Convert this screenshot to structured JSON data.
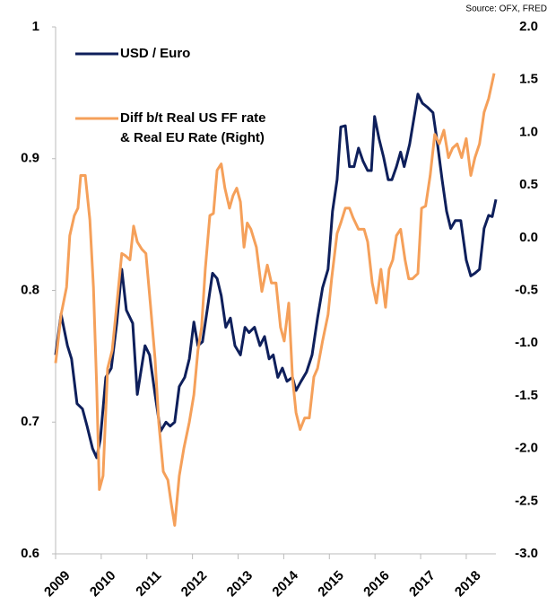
{
  "chart_data": {
    "type": "line",
    "source": "Source: OFX, FRED",
    "xlim": [
      2009,
      2018.65
    ],
    "xticks": [
      2009,
      2010,
      2011,
      2012,
      2013,
      2014,
      2015,
      2016,
      2017,
      2018
    ],
    "ylim": [
      0.6,
      1
    ],
    "yticks": [
      0.6,
      0.7,
      0.8,
      0.9,
      1
    ],
    "y2lim": [
      -3,
      2
    ],
    "y2ticks": [
      {
        "value": -3,
        "label": "-3.0"
      },
      -2.5,
      {
        "value": -2,
        "label": "-2.0"
      },
      -1.5,
      {
        "value": -1,
        "label": "-1.0"
      },
      -0.5,
      {
        "value": 0,
        "label": "0.0"
      },
      0.5,
      {
        "value": 1,
        "label": "1.0"
      },
      1.5,
      {
        "value": 2,
        "label": "2.0"
      }
    ],
    "grid": false,
    "series": [
      {
        "name": "USD / Euro",
        "color": "#0e1f5b",
        "axis": "y",
        "x": [
          2009.0,
          2009.12,
          2009.26,
          2009.35,
          2009.47,
          2009.59,
          2009.69,
          2009.81,
          2009.9,
          2009.98,
          2010.1,
          2010.22,
          2010.34,
          2010.45,
          2010.55,
          2010.69,
          2010.79,
          2010.85,
          2010.96,
          2011.06,
          2011.18,
          2011.3,
          2011.42,
          2011.51,
          2011.61,
          2011.71,
          2011.83,
          2011.93,
          2012.03,
          2012.12,
          2012.22,
          2012.34,
          2012.44,
          2012.54,
          2012.63,
          2012.73,
          2012.83,
          2012.93,
          2013.05,
          2013.15,
          2013.24,
          2013.36,
          2013.48,
          2013.58,
          2013.68,
          2013.77,
          2013.87,
          2013.97,
          2014.07,
          2014.19,
          2014.27,
          2014.38,
          2014.5,
          2014.62,
          2014.74,
          2014.85,
          2014.97,
          2015.07,
          2015.17,
          2015.25,
          2015.35,
          2015.44,
          2015.54,
          2015.64,
          2015.74,
          2015.84,
          2015.92,
          2015.99,
          2016.09,
          2016.19,
          2016.29,
          2016.37,
          2016.47,
          2016.56,
          2016.64,
          2016.76,
          2016.86,
          2016.94,
          2017.04,
          2017.15,
          2017.27,
          2017.37,
          2017.47,
          2017.57,
          2017.66,
          2017.76,
          2017.88,
          2018.0,
          2018.1,
          2018.19,
          2018.29,
          2018.39,
          2018.49,
          2018.57,
          2018.65
        ],
        "values": [
          0.751,
          0.782,
          0.758,
          0.748,
          0.714,
          0.71,
          0.697,
          0.68,
          0.673,
          0.687,
          0.734,
          0.741,
          0.775,
          0.816,
          0.785,
          0.775,
          0.721,
          0.734,
          0.758,
          0.751,
          0.721,
          0.693,
          0.7,
          0.697,
          0.7,
          0.727,
          0.734,
          0.748,
          0.776,
          0.758,
          0.761,
          0.789,
          0.813,
          0.809,
          0.796,
          0.772,
          0.779,
          0.758,
          0.751,
          0.772,
          0.768,
          0.772,
          0.758,
          0.765,
          0.748,
          0.751,
          0.734,
          0.741,
          0.731,
          0.734,
          0.724,
          0.731,
          0.738,
          0.751,
          0.779,
          0.802,
          0.816,
          0.86,
          0.884,
          0.924,
          0.925,
          0.894,
          0.894,
          0.908,
          0.898,
          0.891,
          0.891,
          0.932,
          0.915,
          0.901,
          0.884,
          0.884,
          0.894,
          0.905,
          0.894,
          0.911,
          0.932,
          0.949,
          0.942,
          0.939,
          0.935,
          0.911,
          0.884,
          0.86,
          0.847,
          0.853,
          0.853,
          0.823,
          0.811,
          0.813,
          0.816,
          0.847,
          0.857,
          0.856,
          0.869
        ]
      },
      {
        "name": [
          "Diff b/t Real US FF rate",
          "& Real EU Rate (Right)"
        ],
        "color": "#f5a05a",
        "axis": "y2",
        "x": [
          2009.0,
          2009.12,
          2009.24,
          2009.31,
          2009.41,
          2009.49,
          2009.55,
          2009.65,
          2009.75,
          2009.83,
          2009.9,
          2009.96,
          2010.04,
          2010.14,
          2010.24,
          2010.34,
          2010.45,
          2010.53,
          2010.63,
          2010.71,
          2010.79,
          2010.89,
          2010.98,
          2011.08,
          2011.18,
          2011.26,
          2011.36,
          2011.46,
          2011.53,
          2011.61,
          2011.71,
          2011.81,
          2011.93,
          2012.03,
          2012.12,
          2012.2,
          2012.28,
          2012.38,
          2012.46,
          2012.54,
          2012.63,
          2012.71,
          2012.81,
          2012.89,
          2012.97,
          2013.05,
          2013.13,
          2013.2,
          2013.28,
          2013.4,
          2013.52,
          2013.64,
          2013.73,
          2013.83,
          2013.93,
          2014.01,
          2014.11,
          2014.19,
          2014.27,
          2014.36,
          2014.46,
          2014.56,
          2014.66,
          2014.74,
          2014.85,
          2014.97,
          2015.05,
          2015.17,
          2015.25,
          2015.35,
          2015.44,
          2015.52,
          2015.64,
          2015.76,
          2015.84,
          2015.94,
          2016.03,
          2016.13,
          2016.23,
          2016.31,
          2016.39,
          2016.47,
          2016.56,
          2016.66,
          2016.74,
          2016.82,
          2016.94,
          2017.02,
          2017.11,
          2017.21,
          2017.31,
          2017.41,
          2017.51,
          2017.61,
          2017.7,
          2017.8,
          2017.9,
          2018.0,
          2018.1,
          2018.19,
          2018.29,
          2018.39,
          2018.49,
          2018.61
        ],
        "values": [
          -1.19,
          -0.73,
          -0.47,
          0.02,
          0.21,
          0.28,
          0.59,
          0.59,
          0.17,
          -0.47,
          -1.41,
          -2.39,
          -2.26,
          -1.24,
          -1.07,
          -0.64,
          -0.15,
          -0.17,
          -0.21,
          0.11,
          -0.04,
          -0.11,
          -0.15,
          -0.64,
          -1.15,
          -1.75,
          -2.22,
          -2.3,
          -2.51,
          -2.73,
          -2.26,
          -2.0,
          -1.75,
          -1.49,
          -1.07,
          -0.85,
          -0.3,
          0.21,
          0.23,
          0.64,
          0.7,
          0.47,
          0.28,
          0.4,
          0.47,
          0.34,
          -0.09,
          0.14,
          0.08,
          -0.09,
          -0.51,
          -0.26,
          -0.43,
          -0.43,
          -0.85,
          -0.98,
          -0.62,
          -1.32,
          -1.66,
          -1.82,
          -1.71,
          -1.71,
          -1.32,
          -1.24,
          -0.98,
          -0.73,
          -0.39,
          0.04,
          0.14,
          0.28,
          0.28,
          0.19,
          0.08,
          0.08,
          -0.04,
          -0.43,
          -0.62,
          -0.3,
          -0.66,
          -0.3,
          -0.21,
          0.02,
          0.08,
          -0.21,
          -0.39,
          -0.39,
          -0.34,
          0.28,
          0.3,
          0.59,
          0.98,
          0.89,
          1.02,
          0.76,
          0.85,
          0.89,
          0.76,
          0.94,
          0.59,
          0.76,
          0.89,
          1.19,
          1.32,
          1.56
        ]
      }
    ]
  }
}
